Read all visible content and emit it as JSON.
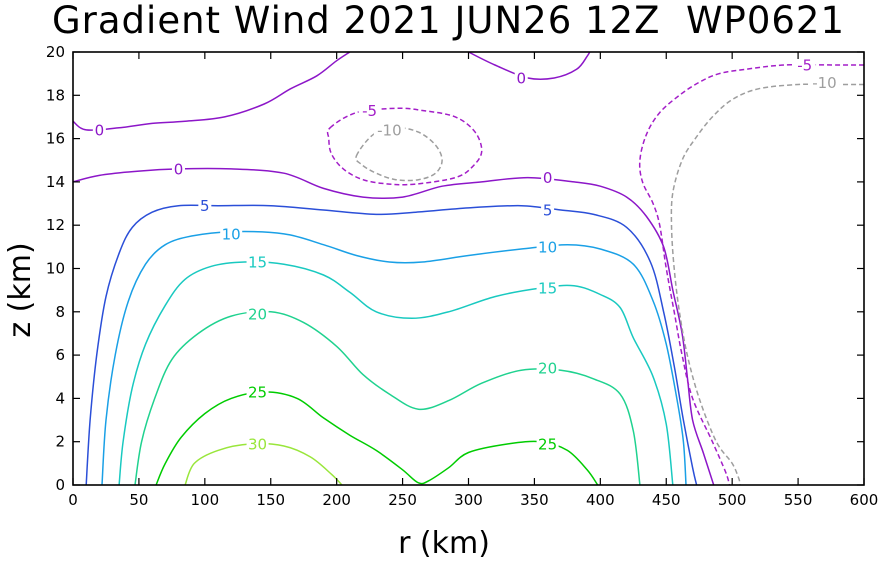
{
  "chart_data": {
    "type": "contour",
    "title": "Gradient Wind 2021 JUN26 12Z  WP0621",
    "xlabel": "r (km)",
    "ylabel": "z (km)",
    "xlim": [
      0,
      600
    ],
    "ylim": [
      0,
      20
    ],
    "xticks": [
      0,
      50,
      100,
      150,
      200,
      250,
      300,
      350,
      400,
      450,
      500,
      550,
      600
    ],
    "yticks": [
      0,
      2,
      4,
      6,
      8,
      10,
      12,
      14,
      16,
      18,
      20
    ],
    "contours": [
      {
        "level": 30,
        "color": "#99e63b",
        "dashed": false,
        "points": [
          [
            85,
            0
          ],
          [
            92,
            1.0
          ],
          [
            110,
            1.6
          ],
          [
            135,
            1.9
          ],
          [
            160,
            1.8
          ],
          [
            180,
            1.3
          ],
          [
            196,
            0.5
          ],
          [
            204,
            0
          ]
        ],
        "labels": [
          {
            "text": "30",
            "r": 140,
            "z": 1.9
          }
        ]
      },
      {
        "level": 25,
        "color": "#00cc00",
        "dashed": false,
        "points": [
          [
            63,
            0
          ],
          [
            70,
            1.0
          ],
          [
            82,
            2.2
          ],
          [
            100,
            3.3
          ],
          [
            120,
            4.0
          ],
          [
            145,
            4.3
          ],
          [
            170,
            4.0
          ],
          [
            190,
            3.1
          ],
          [
            210,
            2.3
          ],
          [
            230,
            1.6
          ],
          [
            250,
            0.7
          ],
          [
            262,
            0.1
          ],
          [
            270,
            0.2
          ],
          [
            285,
            0.8
          ],
          [
            300,
            1.5
          ],
          [
            330,
            1.9
          ],
          [
            355,
            2.0
          ],
          [
            375,
            1.6
          ],
          [
            390,
            0.7
          ],
          [
            398,
            0
          ]
        ],
        "labels": [
          {
            "text": "25",
            "r": 140,
            "z": 4.3
          },
          {
            "text": "25",
            "r": 360,
            "z": 1.9
          }
        ]
      },
      {
        "level": 20,
        "color": "#1fd28f",
        "dashed": false,
        "points": [
          [
            47,
            0
          ],
          [
            52,
            2.0
          ],
          [
            62,
            4.0
          ],
          [
            75,
            5.8
          ],
          [
            95,
            7.0
          ],
          [
            120,
            7.8
          ],
          [
            150,
            8.0
          ],
          [
            175,
            7.5
          ],
          [
            200,
            6.4
          ],
          [
            220,
            5.1
          ],
          [
            240,
            4.2
          ],
          [
            262,
            3.5
          ],
          [
            285,
            3.9
          ],
          [
            310,
            4.7
          ],
          [
            340,
            5.3
          ],
          [
            370,
            5.3
          ],
          [
            395,
            4.9
          ],
          [
            415,
            4.2
          ],
          [
            425,
            2.5
          ],
          [
            430,
            0
          ]
        ],
        "labels": [
          {
            "text": "20",
            "r": 140,
            "z": 7.9
          },
          {
            "text": "20",
            "r": 360,
            "z": 5.4
          }
        ]
      },
      {
        "level": 15,
        "color": "#19c9c0",
        "dashed": false,
        "points": [
          [
            35,
            0
          ],
          [
            38,
            2.0
          ],
          [
            45,
            4.5
          ],
          [
            55,
            6.5
          ],
          [
            70,
            8.3
          ],
          [
            85,
            9.5
          ],
          [
            105,
            10.1
          ],
          [
            130,
            10.3
          ],
          [
            160,
            10.2
          ],
          [
            190,
            9.7
          ],
          [
            210,
            8.9
          ],
          [
            230,
            8.0
          ],
          [
            257,
            7.7
          ],
          [
            285,
            8.0
          ],
          [
            320,
            8.7
          ],
          [
            355,
            9.1
          ],
          [
            380,
            9.2
          ],
          [
            400,
            8.8
          ],
          [
            415,
            8.2
          ],
          [
            425,
            6.8
          ],
          [
            440,
            5.0
          ],
          [
            450,
            2.8
          ],
          [
            455,
            0
          ]
        ],
        "labels": [
          {
            "text": "15",
            "r": 140,
            "z": 10.3
          },
          {
            "text": "15",
            "r": 360,
            "z": 9.1
          }
        ]
      },
      {
        "level": 10,
        "color": "#1aa0e6",
        "dashed": false,
        "points": [
          [
            22,
            0
          ],
          [
            25,
            3.0
          ],
          [
            32,
            6.0
          ],
          [
            42,
            8.5
          ],
          [
            55,
            10.2
          ],
          [
            70,
            11.1
          ],
          [
            90,
            11.5
          ],
          [
            120,
            11.7
          ],
          [
            160,
            11.6
          ],
          [
            190,
            11.1
          ],
          [
            215,
            10.6
          ],
          [
            240,
            10.3
          ],
          [
            265,
            10.3
          ],
          [
            300,
            10.6
          ],
          [
            340,
            10.9
          ],
          [
            375,
            11.1
          ],
          [
            400,
            10.9
          ],
          [
            425,
            10.2
          ],
          [
            440,
            8.5
          ],
          [
            450,
            6.5
          ],
          [
            458,
            4.0
          ],
          [
            463,
            2.0
          ],
          [
            465,
            0
          ]
        ],
        "labels": [
          {
            "text": "10",
            "r": 120,
            "z": 11.6
          },
          {
            "text": "10",
            "r": 360,
            "z": 11.0
          }
        ]
      },
      {
        "level": 5,
        "color": "#2b4fd8",
        "dashed": false,
        "points": [
          [
            10,
            0
          ],
          [
            13,
            3.0
          ],
          [
            18,
            6.0
          ],
          [
            25,
            8.7
          ],
          [
            35,
            10.7
          ],
          [
            45,
            11.9
          ],
          [
            60,
            12.6
          ],
          [
            80,
            12.9
          ],
          [
            110,
            12.9
          ],
          [
            150,
            12.9
          ],
          [
            190,
            12.7
          ],
          [
            230,
            12.5
          ],
          [
            260,
            12.6
          ],
          [
            300,
            12.8
          ],
          [
            340,
            12.9
          ],
          [
            370,
            12.7
          ],
          [
            395,
            12.5
          ],
          [
            420,
            11.9
          ],
          [
            438,
            10.3
          ],
          [
            448,
            8.0
          ],
          [
            456,
            5.5
          ],
          [
            463,
            3.0
          ],
          [
            470,
            0.8
          ],
          [
            473,
            0
          ]
        ],
        "labels": [
          {
            "text": "5",
            "r": 100,
            "z": 12.9
          },
          {
            "text": "5",
            "r": 360,
            "z": 12.7
          }
        ]
      },
      {
        "level": 0,
        "color": "#8c16c8",
        "dashed": false,
        "points": [
          [
            0,
            14.0
          ],
          [
            20,
            14.3
          ],
          [
            50,
            14.5
          ],
          [
            80,
            14.6
          ],
          [
            120,
            14.6
          ],
          [
            160,
            14.4
          ],
          [
            190,
            13.7
          ],
          [
            220,
            13.3
          ],
          [
            250,
            13.3
          ],
          [
            280,
            13.8
          ],
          [
            310,
            14.0
          ],
          [
            345,
            14.2
          ],
          [
            380,
            14.0
          ],
          [
            400,
            13.8
          ],
          [
            420,
            13.3
          ],
          [
            435,
            12.4
          ],
          [
            448,
            11.0
          ],
          [
            455,
            9.0
          ],
          [
            462,
            7.0
          ],
          [
            466,
            5.0
          ],
          [
            470,
            3.0
          ],
          [
            478,
            1.5
          ],
          [
            486,
            0
          ]
        ],
        "labels": [
          {
            "text": "0",
            "r": 80,
            "z": 14.6
          },
          {
            "text": "0",
            "r": 360,
            "z": 14.2
          }
        ]
      },
      {
        "level": 0,
        "color": "#8c16c8",
        "dashed": false,
        "points": [
          [
            0,
            16.8
          ],
          [
            10,
            16.4
          ],
          [
            35,
            16.5
          ],
          [
            60,
            16.7
          ],
          [
            85,
            16.8
          ],
          [
            115,
            17.0
          ],
          [
            145,
            17.6
          ],
          [
            165,
            18.3
          ],
          [
            185,
            18.9
          ],
          [
            200,
            19.6
          ],
          [
            210,
            20
          ]
        ],
        "labels": [
          {
            "text": "0",
            "r": 20,
            "z": 16.4
          }
        ]
      },
      {
        "level": 0,
        "color": "#8c16c8",
        "dashed": false,
        "points": [
          [
            300,
            20
          ],
          [
            320,
            19.4
          ],
          [
            345,
            18.8
          ],
          [
            365,
            18.8
          ],
          [
            382,
            19.2
          ],
          [
            390,
            19.8
          ],
          [
            392,
            20
          ]
        ],
        "labels": [
          {
            "text": "0",
            "r": 340,
            "z": 18.8
          }
        ]
      },
      {
        "level": -5,
        "color": "#a31ec8",
        "dashed": true,
        "points": [
          [
            600,
            19.4
          ],
          [
            580,
            19.4
          ],
          [
            540,
            19.4
          ],
          [
            510,
            19.2
          ],
          [
            490,
            19.0
          ],
          [
            475,
            18.6
          ],
          [
            460,
            18.0
          ],
          [
            445,
            17.2
          ],
          [
            435,
            16.2
          ],
          [
            430,
            15.0
          ],
          [
            432,
            14.0
          ],
          [
            440,
            13.0
          ],
          [
            445,
            12.0
          ],
          [
            450,
            10.0
          ],
          [
            456,
            8.0
          ],
          [
            462,
            6.0
          ],
          [
            470,
            4.0
          ],
          [
            485,
            2.0
          ],
          [
            495,
            0.6
          ],
          [
            498,
            0
          ]
        ],
        "labels": [
          {
            "text": "-5",
            "r": 555,
            "z": 19.4
          }
        ]
      },
      {
        "level": -5,
        "color": "#a31ec8",
        "dashed": true,
        "closed": true,
        "points": [
          [
            195,
            16.5
          ],
          [
            215,
            17.2
          ],
          [
            245,
            17.4
          ],
          [
            265,
            17.3
          ],
          [
            290,
            17.0
          ],
          [
            305,
            16.3
          ],
          [
            310,
            15.4
          ],
          [
            303,
            14.7
          ],
          [
            290,
            14.2
          ],
          [
            260,
            13.9
          ],
          [
            240,
            13.9
          ],
          [
            220,
            14.1
          ],
          [
            205,
            14.6
          ],
          [
            196,
            15.3
          ],
          [
            194,
            16.0
          ]
        ],
        "labels": [
          {
            "text": "-5",
            "r": 225,
            "z": 17.3
          }
        ]
      },
      {
        "level": -10,
        "color": "#9e9e9e",
        "dashed": true,
        "points": [
          [
            600,
            18.5
          ],
          [
            575,
            18.5
          ],
          [
            550,
            18.5
          ],
          [
            520,
            18.3
          ],
          [
            500,
            17.8
          ],
          [
            485,
            17.0
          ],
          [
            472,
            16.0
          ],
          [
            462,
            15.0
          ],
          [
            455,
            13.5
          ],
          [
            454,
            12.0
          ],
          [
            456,
            10.0
          ],
          [
            460,
            8.0
          ],
          [
            466,
            6.0
          ],
          [
            475,
            4.0
          ],
          [
            488,
            2.0
          ],
          [
            500,
            1.0
          ],
          [
            505,
            0.3
          ],
          [
            506,
            0
          ]
        ],
        "labels": [
          {
            "text": "-10",
            "r": 570,
            "z": 18.6
          }
        ]
      },
      {
        "level": -10,
        "color": "#9e9e9e",
        "dashed": true,
        "closed": true,
        "points": [
          [
            215,
            15.2
          ],
          [
            228,
            16.2
          ],
          [
            245,
            16.5
          ],
          [
            262,
            16.3
          ],
          [
            275,
            15.7
          ],
          [
            280,
            15.0
          ],
          [
            275,
            14.4
          ],
          [
            262,
            14.1
          ],
          [
            245,
            14.1
          ],
          [
            230,
            14.4
          ],
          [
            219,
            14.8
          ]
        ],
        "labels": [
          {
            "text": "-10",
            "r": 240,
            "z": 16.4
          }
        ]
      }
    ]
  }
}
